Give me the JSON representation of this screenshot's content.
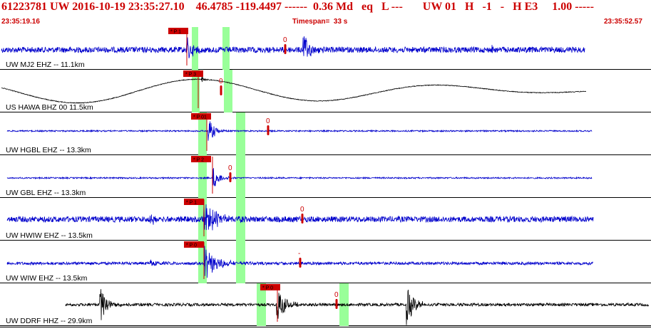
{
  "header": {
    "event_line": "61223781 UW 2016-10-19 23:35:27.10    46.4785 -119.4497 ------  0.36 Md   eq   L ---       UW 01   H   -1   -   H E3     1.00 -----",
    "start_time": "23:35:19.16",
    "timespan": "Timespan=  33 s",
    "end_time": "23:35:52.57"
  },
  "colors": {
    "header_text": "#cc0000",
    "trace_blue": "#0000cc",
    "trace_black": "#000000",
    "pick_red": "#cc0000",
    "window_green": "#99ff99"
  },
  "traces": [
    {
      "label": "UW MJ2 EHZ -- 11.1km",
      "color": "#0000cc",
      "pick": "* P 1",
      "amp": "0"
    },
    {
      "label": "US HAWA BHZ 00 11.5km",
      "color": "#000000",
      "pick": "* P 3",
      "amp": "0"
    },
    {
      "label": "UW HGBL EHZ -- 13.3km",
      "color": "#0000cc",
      "pick": "* P 01",
      "amp": "0"
    },
    {
      "label": "UW GBL EHZ -- 13.3km",
      "color": "#0000cc",
      "pick": "* P 2",
      "amp": "0"
    },
    {
      "label": "UW HWIW EHZ -- 13.5km",
      "color": "#0000cc",
      "pick": "* P 1",
      "amp": "0"
    },
    {
      "label": "UW WIW EHZ -- 13.5km",
      "color": "#0000cc",
      "pick": "* P 0",
      "amp": "-"
    },
    {
      "label": "UW DDRF HHZ -- 29.9km",
      "color": "#000000",
      "pick": "* P 0",
      "amp": "0"
    }
  ]
}
